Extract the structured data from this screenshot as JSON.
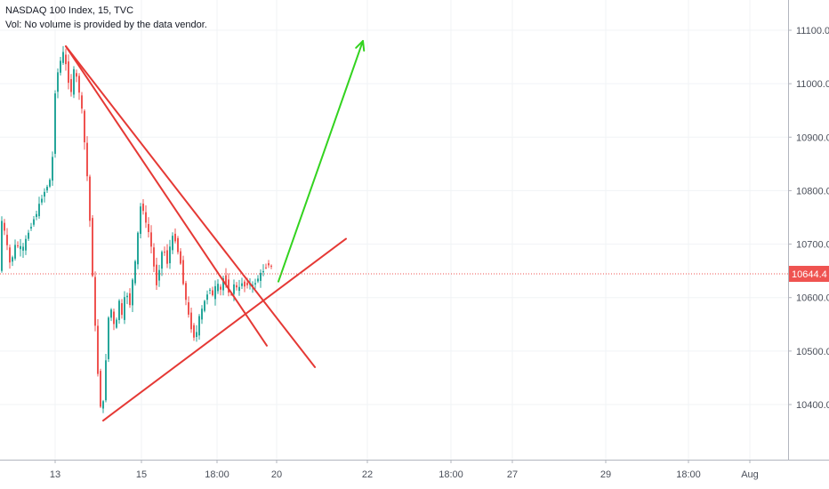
{
  "legend": {
    "title": "NASDAQ 100 Index, 15, TVC",
    "volume_note": "Vol: No volume is provided by the data vendor."
  },
  "colors": {
    "up": "#26a69a",
    "down": "#ef5350",
    "drawing_red": "#e53935",
    "drawing_green": "#33d31f",
    "price_label_bg": "#ef5350",
    "grid": "#f0f3f6",
    "axis_text": "#4a4f5a"
  },
  "chart_data": {
    "type": "candlestick",
    "title": "NASDAQ 100 Index, 15, TVC",
    "y_ticks": [
      "11100.0",
      "11000.0",
      "10900.0",
      "10800.0",
      "10700.0",
      "10600.0",
      "10500.0",
      "10400.0"
    ],
    "x_ticks": [
      "13",
      "15",
      "18:00",
      "20",
      "22",
      "18:00",
      "27",
      "29",
      "18:00",
      "Aug"
    ],
    "ylim": [
      10340,
      11160
    ],
    "last_price": 10644.4,
    "last_price_label": "10644.4",
    "grid": true,
    "price_path": [
      [
        0,
        10760
      ],
      [
        6,
        10720
      ],
      [
        12,
        10660
      ],
      [
        18,
        10700
      ],
      [
        26,
        10690
      ],
      [
        34,
        10730
      ],
      [
        42,
        10760
      ],
      [
        48,
        10790
      ],
      [
        54,
        10810
      ],
      [
        59,
        10830
      ],
      [
        61,
        10960
      ],
      [
        64,
        11010
      ],
      [
        68,
        11040
      ],
      [
        72,
        11060
      ],
      [
        76,
        11020
      ],
      [
        80,
        10980
      ],
      [
        84,
        11030
      ],
      [
        88,
        11000
      ],
      [
        92,
        10960
      ],
      [
        95,
        10900
      ],
      [
        98,
        10840
      ],
      [
        101,
        10760
      ],
      [
        104,
        10660
      ],
      [
        107,
        10560
      ],
      [
        110,
        10470
      ],
      [
        113,
        10400
      ],
      [
        116,
        10390
      ],
      [
        119,
        10470
      ],
      [
        122,
        10560
      ],
      [
        126,
        10580
      ],
      [
        130,
        10530
      ],
      [
        134,
        10600
      ],
      [
        138,
        10560
      ],
      [
        142,
        10620
      ],
      [
        146,
        10580
      ],
      [
        150,
        10640
      ],
      [
        154,
        10680
      ],
      [
        157,
        10760
      ],
      [
        160,
        10780
      ],
      [
        164,
        10740
      ],
      [
        168,
        10720
      ],
      [
        172,
        10680
      ],
      [
        176,
        10620
      ],
      [
        180,
        10660
      ],
      [
        184,
        10700
      ],
      [
        188,
        10660
      ],
      [
        192,
        10700
      ],
      [
        196,
        10720
      ],
      [
        200,
        10690
      ],
      [
        204,
        10660
      ],
      [
        208,
        10610
      ],
      [
        212,
        10570
      ],
      [
        216,
        10540
      ],
      [
        220,
        10520
      ],
      [
        224,
        10560
      ],
      [
        228,
        10580
      ],
      [
        232,
        10600
      ],
      [
        236,
        10620
      ],
      [
        240,
        10600
      ],
      [
        244,
        10630
      ],
      [
        248,
        10610
      ],
      [
        252,
        10640
      ],
      [
        256,
        10620
      ],
      [
        260,
        10600
      ],
      [
        264,
        10630
      ],
      [
        268,
        10610
      ],
      [
        272,
        10630
      ],
      [
        276,
        10620
      ],
      [
        280,
        10630
      ],
      [
        284,
        10620
      ],
      [
        288,
        10630
      ],
      [
        292,
        10640
      ],
      [
        296,
        10650
      ],
      [
        300,
        10660
      ],
      [
        304,
        10665
      ],
      [
        307,
        10650
      ]
    ],
    "drawings": [
      {
        "type": "trendline",
        "color": "red",
        "from": [
          74,
          11070
        ],
        "to": [
          300,
          10510
        ]
      },
      {
        "type": "trendline",
        "color": "red",
        "from": [
          74,
          11070
        ],
        "to": [
          354,
          10470
        ]
      },
      {
        "type": "trendline",
        "color": "red",
        "from": [
          116,
          10370
        ],
        "to": [
          389,
          10710
        ]
      },
      {
        "type": "arrow",
        "color": "green",
        "from": [
          313,
          10630
        ],
        "to": [
          408,
          11080
        ]
      }
    ]
  }
}
